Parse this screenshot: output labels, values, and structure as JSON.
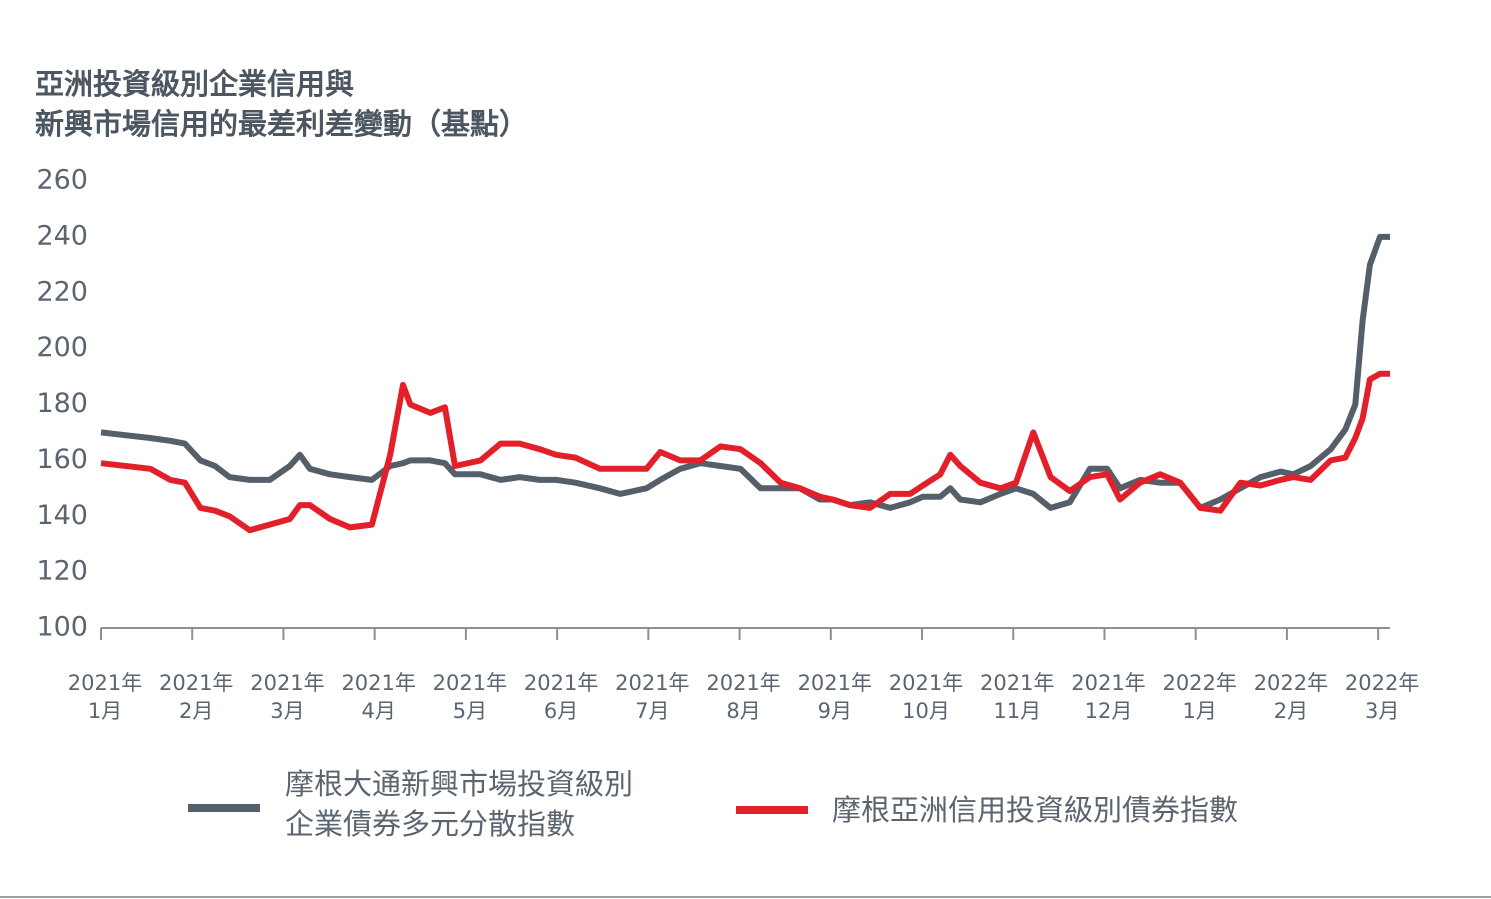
{
  "chart_data": {
    "type": "line",
    "title": "亞洲投資級別企業信用與\n新興市場信用的最差利差變動（基點）",
    "x": [
      0,
      0.54,
      0.76,
      0.92,
      1.09,
      1.25,
      1.41,
      1.63,
      1.85,
      2.07,
      2.18,
      2.29,
      2.51,
      2.73,
      2.97,
      3.17,
      3.31,
      3.39,
      3.61,
      3.77,
      3.88,
      4.16,
      4.38,
      4.59,
      4.81,
      4.99,
      5.2,
      5.47,
      5.69,
      5.98,
      6.13,
      6.35,
      6.57,
      6.79,
      7.01,
      7.23,
      7.45,
      7.66,
      7.88,
      8.02,
      8.21,
      8.43,
      8.65,
      8.87,
      9.01,
      9.2,
      9.31,
      9.42,
      9.64,
      9.86,
      10.03,
      10.22,
      10.41,
      10.62,
      10.84,
      11.03,
      11.17,
      11.39,
      11.61,
      11.83,
      12.05,
      12.27,
      12.49,
      12.71,
      12.93,
      13.07,
      13.26,
      13.48,
      13.64,
      13.75,
      13.83,
      13.91,
      14.02,
      14.13
    ],
    "series": [
      {
        "name": "摩根大通新興市場投資級別\n企業債券多元分散指數",
        "color": "#555f69",
        "values": [
          170,
          168,
          167,
          166,
          160,
          158,
          154,
          153,
          153,
          158,
          162,
          157,
          155,
          154,
          153,
          158,
          159,
          160,
          160,
          159,
          155,
          155,
          153,
          154,
          153,
          153,
          152,
          150,
          148,
          150,
          153,
          157,
          159,
          158,
          157,
          150,
          150,
          150,
          146,
          146,
          144,
          145,
          143,
          145,
          147,
          147,
          150,
          146,
          145,
          148,
          150,
          148,
          143,
          145,
          157,
          157,
          150,
          153,
          152,
          152,
          143,
          146,
          150,
          154,
          156,
          155,
          158,
          164,
          171,
          180,
          210,
          230,
          240,
          240
        ]
      },
      {
        "name": "摩根亞洲信用投資級別債券指數",
        "color": "#e3202a",
        "values": [
          159,
          157,
          153,
          152,
          143,
          142,
          140,
          135,
          137,
          139,
          144,
          144,
          139,
          136,
          137,
          162,
          187,
          180,
          177,
          179,
          158,
          160,
          166,
          166,
          164,
          162,
          161,
          157,
          157,
          157,
          163,
          160,
          160,
          165,
          164,
          159,
          152,
          150,
          147,
          146,
          144,
          143,
          148,
          148,
          151,
          155,
          162,
          158,
          152,
          150,
          152,
          170,
          154,
          149,
          154,
          155,
          146,
          152,
          155,
          152,
          143,
          142,
          152,
          151,
          153,
          154,
          153,
          160,
          161,
          168,
          175,
          189,
          191,
          191
        ]
      }
    ],
    "xlim": [
      0,
      14.13
    ],
    "xticks": [
      {
        "value": 0,
        "label": "2021年\n1月"
      },
      {
        "value": 1,
        "label": "2021年\n2月"
      },
      {
        "value": 2,
        "label": "2021年\n3月"
      },
      {
        "value": 3,
        "label": "2021年\n4月"
      },
      {
        "value": 4,
        "label": "2021年\n5月"
      },
      {
        "value": 5,
        "label": "2021年\n6月"
      },
      {
        "value": 6,
        "label": "2021年\n7月"
      },
      {
        "value": 7,
        "label": "2021年\n8月"
      },
      {
        "value": 8,
        "label": "2021年\n9月"
      },
      {
        "value": 9,
        "label": "2021年\n10月"
      },
      {
        "value": 10,
        "label": "2021年\n11月"
      },
      {
        "value": 11,
        "label": "2021年\n12月"
      },
      {
        "value": 12,
        "label": "2022年\n1月"
      },
      {
        "value": 13,
        "label": "2022年\n2月"
      },
      {
        "value": 14,
        "label": "2022年\n3月"
      }
    ],
    "ylim": [
      100,
      260
    ],
    "yticks": [
      100,
      120,
      140,
      160,
      180,
      200,
      220,
      240,
      260
    ],
    "grid": false
  }
}
